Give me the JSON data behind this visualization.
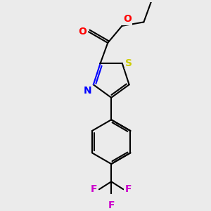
{
  "bg_color": "#ebebeb",
  "bond_color": "#000000",
  "bond_width": 1.5,
  "atom_colors": {
    "S": "#cccc00",
    "N": "#0000ff",
    "O": "#ff0000",
    "F": "#cc00cc",
    "C": "#000000"
  },
  "font_size": 10,
  "fig_size": [
    3.0,
    3.0
  ],
  "dpi": 100,
  "xlim": [
    0,
    10
  ],
  "ylim": [
    0,
    10
  ]
}
